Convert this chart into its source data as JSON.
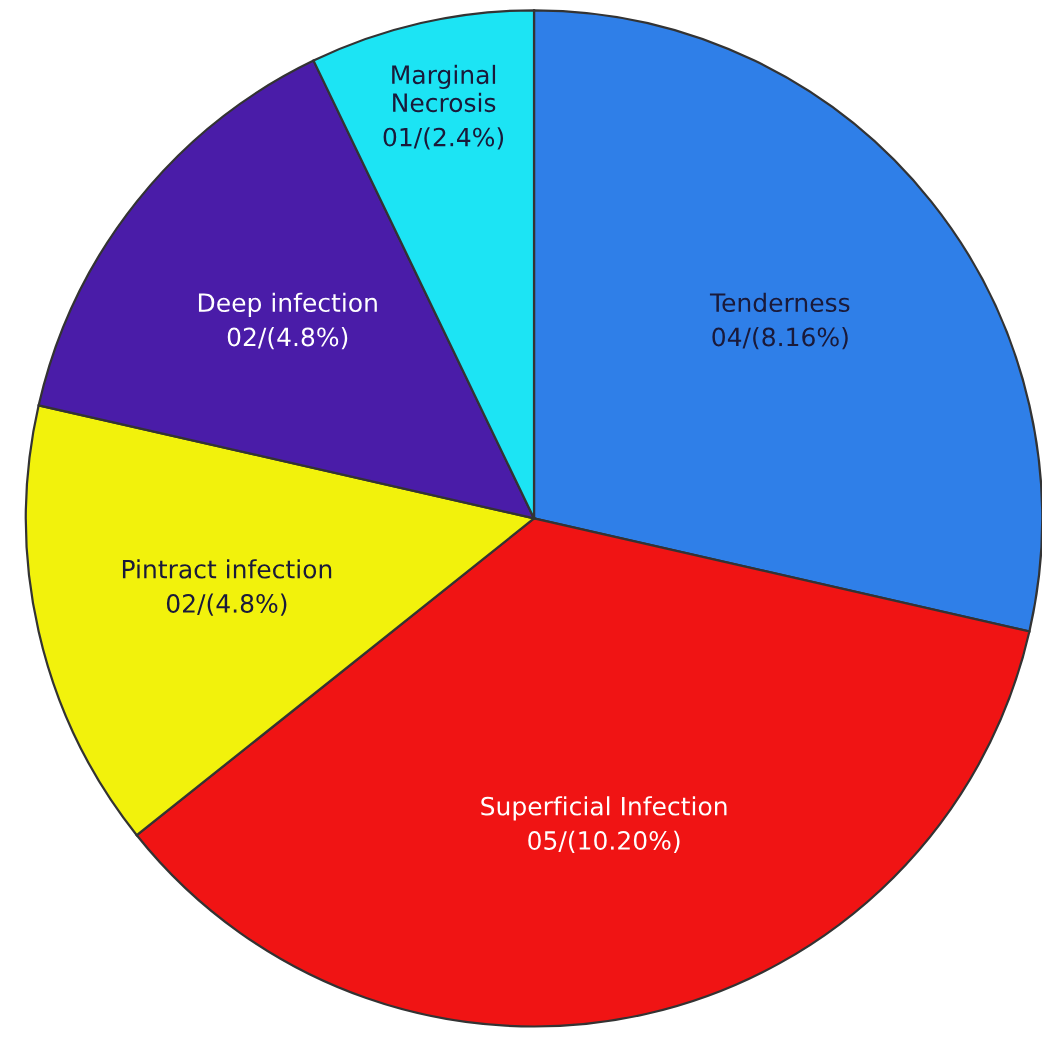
{
  "chart_data": {
    "type": "pie",
    "categories": [
      "Tenderness",
      "Superficial Infection",
      "Pintract infection",
      "Deep infection",
      "Marginal\nNecrosis"
    ],
    "values": [
      4,
      5,
      2,
      2,
      1
    ],
    "value_labels": [
      "04/(8.16%)",
      "05/(10.20%)",
      "02/(4.8%)",
      "02/(4.8%)",
      "01/(2.4%)"
    ],
    "colors": [
      "#2f7fe8",
      "#f01414",
      "#f2f20c",
      "#4a1ca8",
      "#1ce4f4"
    ]
  }
}
